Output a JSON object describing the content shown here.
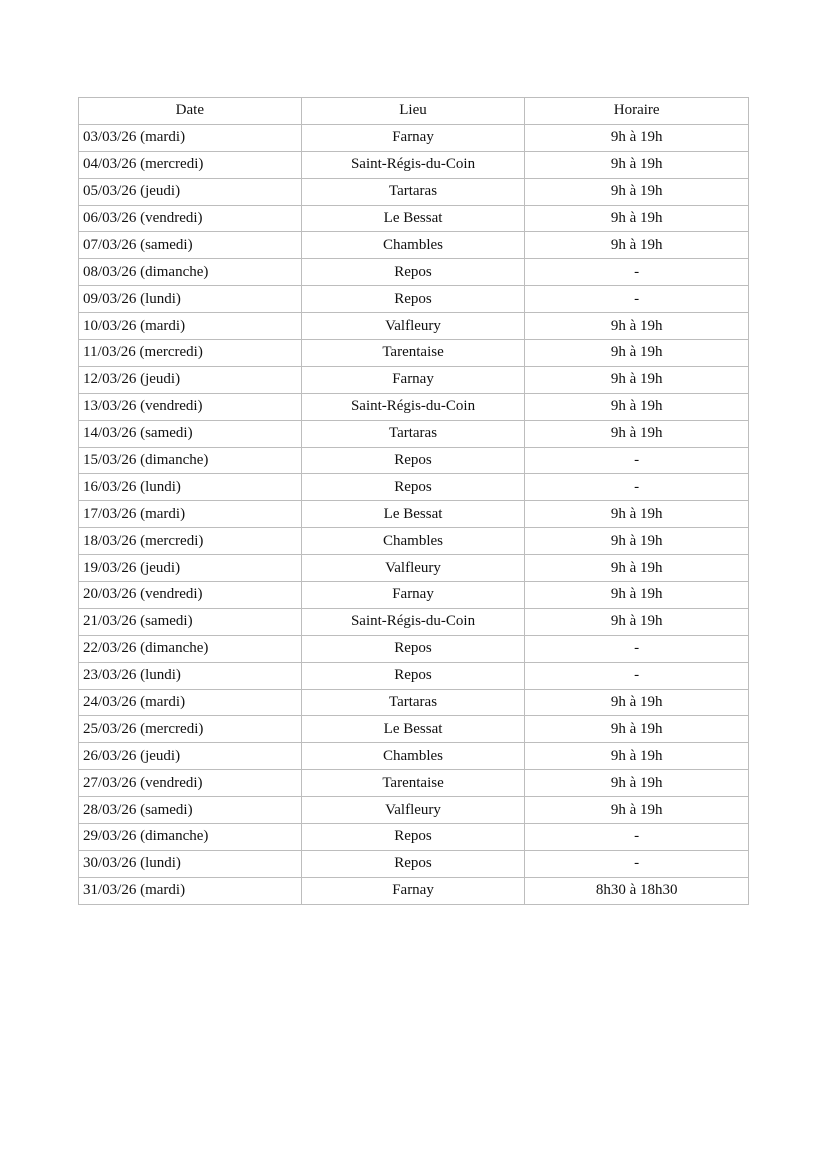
{
  "table": {
    "headers": [
      "Date",
      "Lieu",
      "Horaire"
    ],
    "rows": [
      [
        "03/03/26 (mardi)",
        "Farnay",
        "9h à 19h"
      ],
      [
        "04/03/26 (mercredi)",
        "Saint-Régis-du-Coin",
        "9h à 19h"
      ],
      [
        "05/03/26 (jeudi)",
        "Tartaras",
        "9h à 19h"
      ],
      [
        "06/03/26 (vendredi)",
        "Le Bessat",
        "9h à 19h"
      ],
      [
        "07/03/26 (samedi)",
        "Chambles",
        "9h à 19h"
      ],
      [
        "08/03/26 (dimanche)",
        "Repos",
        "-"
      ],
      [
        "09/03/26 (lundi)",
        "Repos",
        "-"
      ],
      [
        "10/03/26 (mardi)",
        "Valfleury",
        "9h à 19h"
      ],
      [
        "11/03/26 (mercredi)",
        "Tarentaise",
        "9h à 19h"
      ],
      [
        "12/03/26 (jeudi)",
        "Farnay",
        "9h à 19h"
      ],
      [
        "13/03/26 (vendredi)",
        "Saint-Régis-du-Coin",
        "9h à 19h"
      ],
      [
        "14/03/26 (samedi)",
        "Tartaras",
        "9h à 19h"
      ],
      [
        "15/03/26 (dimanche)",
        "Repos",
        "-"
      ],
      [
        "16/03/26 (lundi)",
        "Repos",
        "-"
      ],
      [
        "17/03/26 (mardi)",
        "Le Bessat",
        "9h à 19h"
      ],
      [
        "18/03/26 (mercredi)",
        "Chambles",
        "9h à 19h"
      ],
      [
        "19/03/26 (jeudi)",
        "Valfleury",
        "9h à 19h"
      ],
      [
        "20/03/26 (vendredi)",
        "Farnay",
        "9h à 19h"
      ],
      [
        "21/03/26 (samedi)",
        "Saint-Régis-du-Coin",
        "9h à 19h"
      ],
      [
        "22/03/26 (dimanche)",
        "Repos",
        "-"
      ],
      [
        "23/03/26 (lundi)",
        "Repos",
        "-"
      ],
      [
        "24/03/26 (mardi)",
        "Tartaras",
        "9h à 19h"
      ],
      [
        "25/03/26 (mercredi)",
        "Le Bessat",
        "9h à 19h"
      ],
      [
        "26/03/26 (jeudi)",
        "Chambles",
        "9h à 19h"
      ],
      [
        "27/03/26 (vendredi)",
        "Tarentaise",
        "9h à 19h"
      ],
      [
        "28/03/26 (samedi)",
        "Valfleury",
        "9h à 19h"
      ],
      [
        "29/03/26 (dimanche)",
        "Repos",
        "-"
      ],
      [
        "30/03/26 (lundi)",
        "Repos",
        "-"
      ],
      [
        "31/03/26 (mardi)",
        "Farnay",
        "8h30 à 18h30"
      ]
    ]
  }
}
